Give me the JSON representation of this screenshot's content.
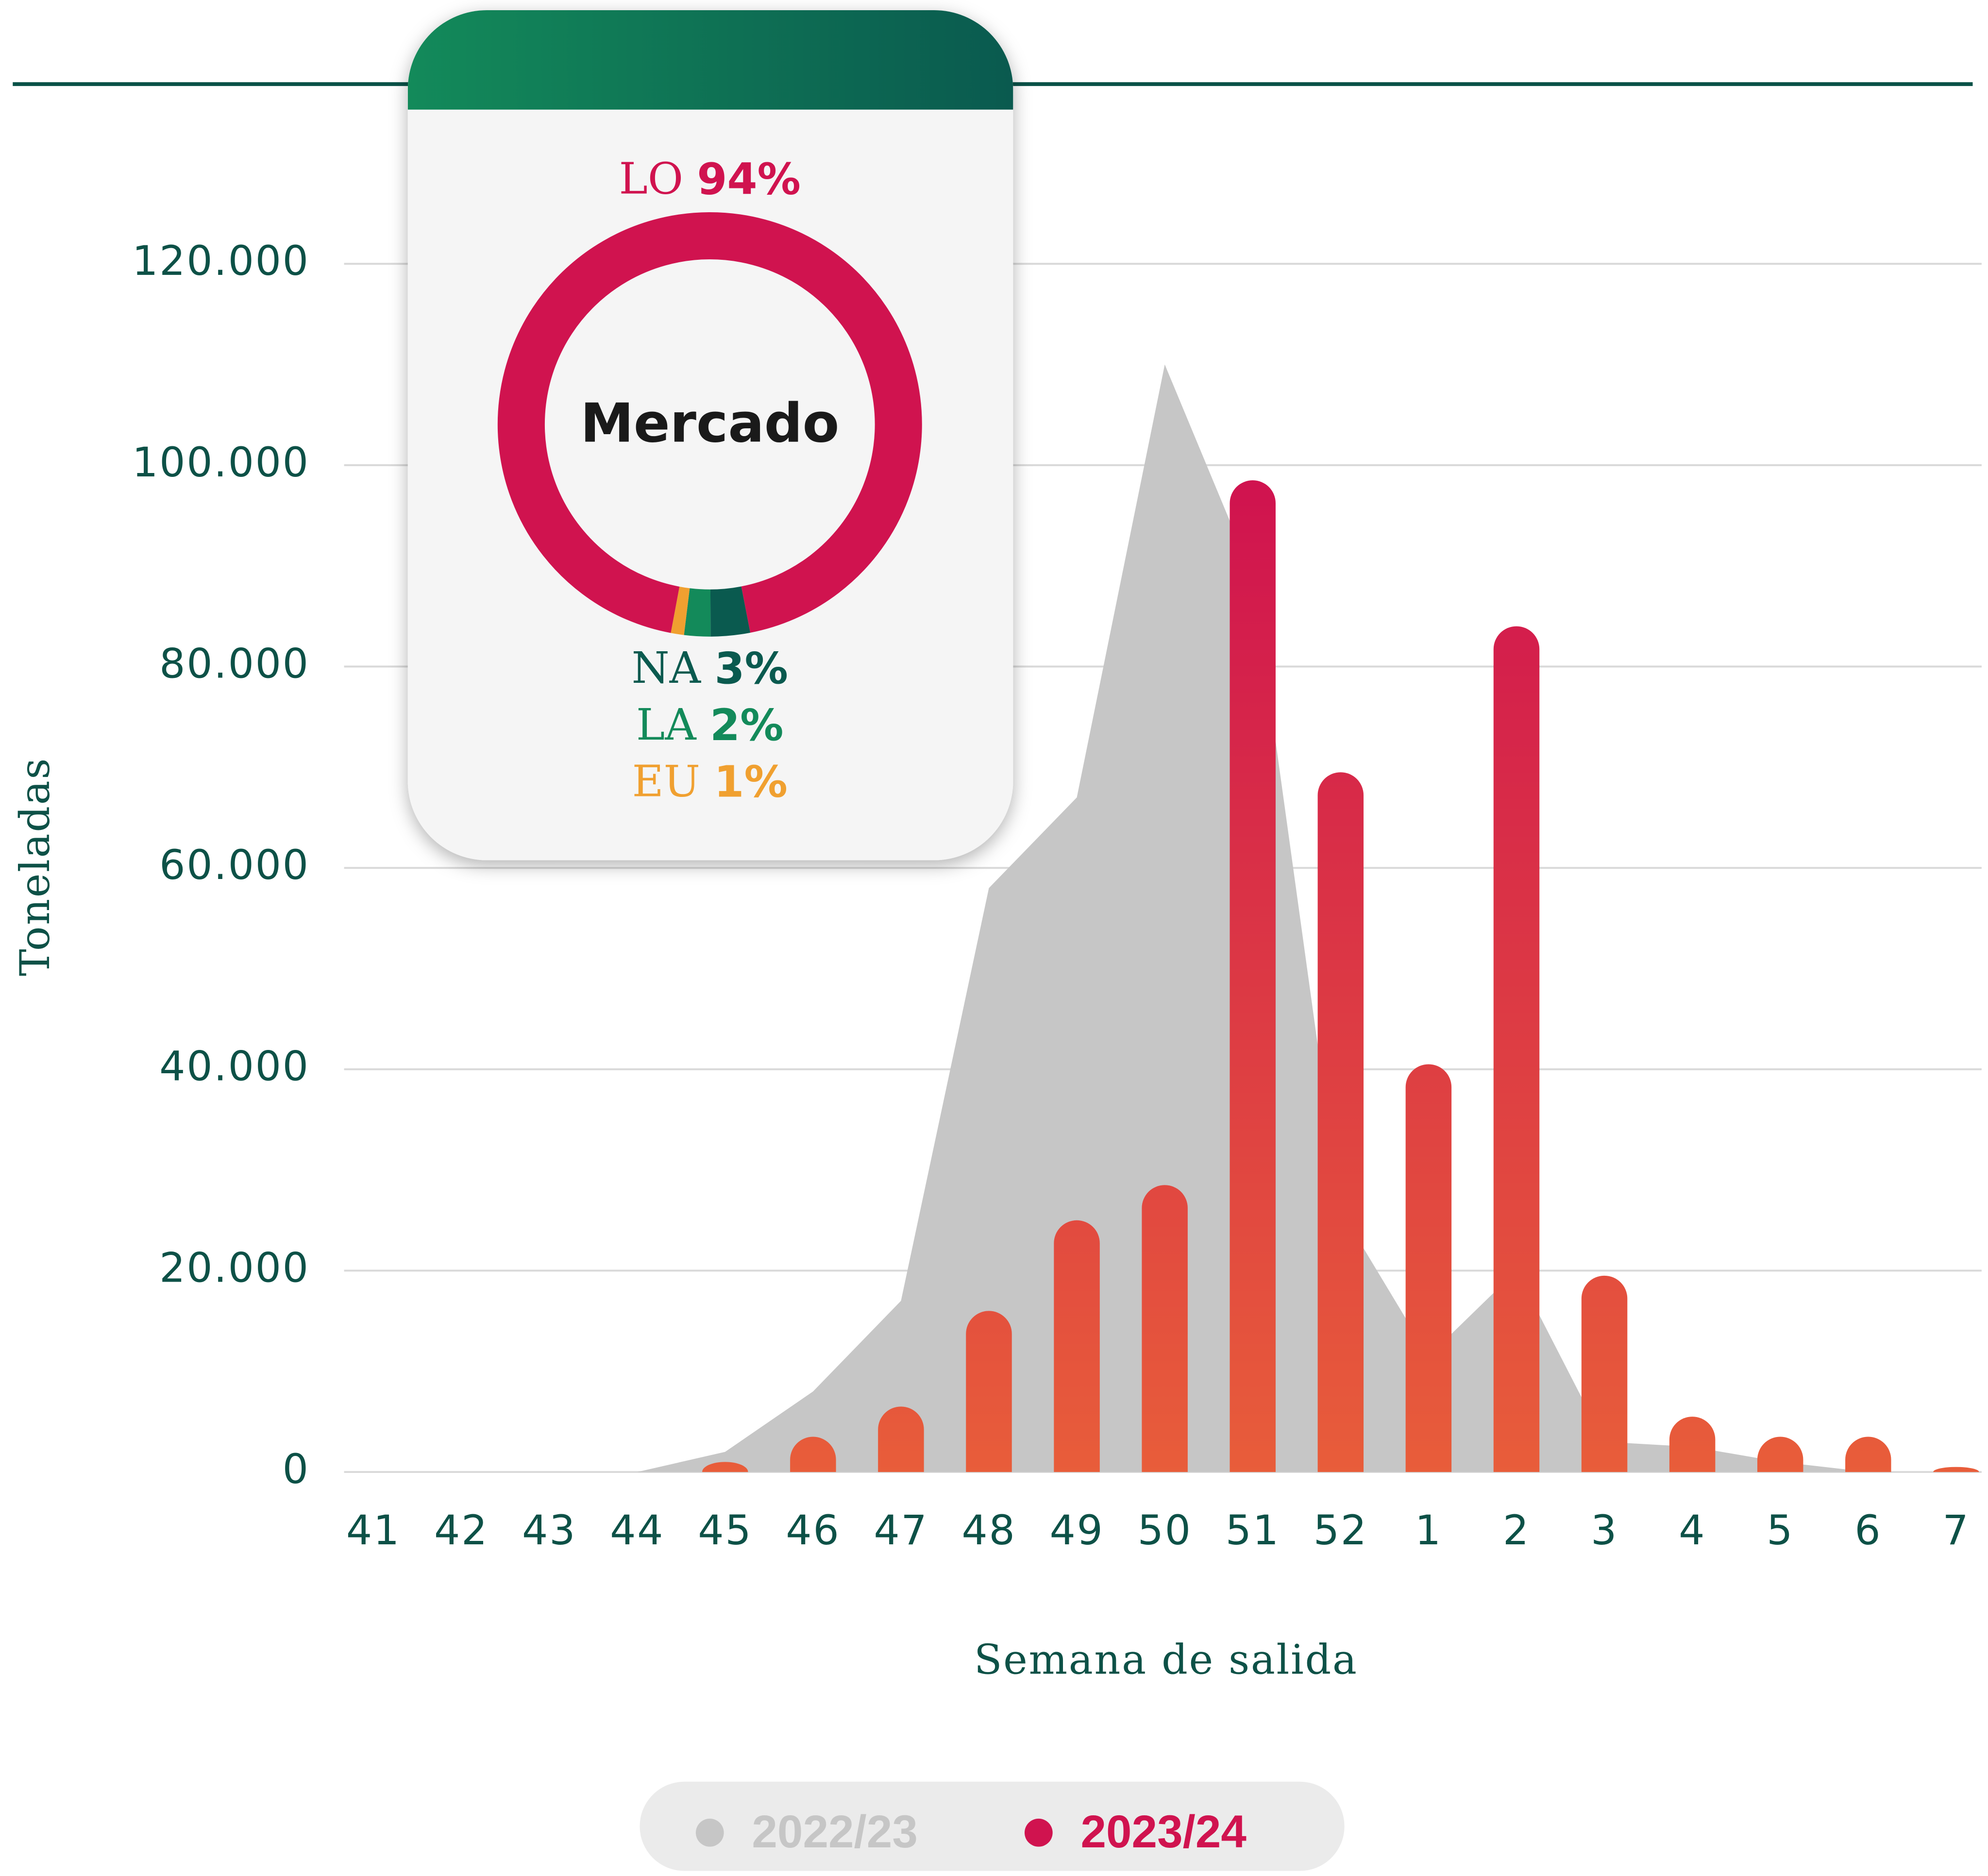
{
  "chart_data": [
    {
      "type": "bar",
      "xlabel": "Semana de salida",
      "ylabel": "Toneladas",
      "categories": [
        "41",
        "42",
        "43",
        "44",
        "45",
        "46",
        "47",
        "48",
        "49",
        "50",
        "51",
        "52",
        "1",
        "2",
        "3",
        "4",
        "5",
        "6",
        "7"
      ],
      "series": [
        {
          "name": "2022/23",
          "type": "area",
          "color": "#c6c6c6",
          "values": [
            0,
            0,
            0,
            0,
            2000,
            8000,
            17000,
            58000,
            67000,
            110000,
            89000,
            26000,
            11500,
            20000,
            3000,
            2500,
            1000,
            0,
            0
          ]
        },
        {
          "name": "2023/24",
          "type": "bar",
          "color": "#d0134f",
          "values": [
            0,
            0,
            0,
            0,
            1000,
            3500,
            6500,
            16000,
            25000,
            28500,
            98500,
            69500,
            40500,
            84000,
            19500,
            5500,
            3500,
            3500,
            500
          ]
        }
      ],
      "ylim": [
        0,
        120000
      ],
      "yticks": [
        0,
        {
          "value": 20000,
          "label": "20.000"
        },
        {
          "value": 40000,
          "label": "40.000"
        },
        {
          "value": 60000,
          "label": "60.000"
        },
        {
          "value": 80000,
          "label": "80.000"
        },
        {
          "value": 100000,
          "label": "100.000"
        },
        {
          "value": 120000,
          "label": "120.000"
        }
      ],
      "grid": true,
      "legend": "bottom"
    },
    {
      "type": "pie",
      "title": "Mercado",
      "categories": [
        "LO",
        "NA",
        "LA",
        "EU"
      ],
      "values": [
        94,
        3,
        2,
        1
      ],
      "value_labels": [
        "94%",
        "3%",
        "2%",
        "1%"
      ],
      "colors": [
        "#d0134f",
        "#0a5a4f",
        "#138a5a",
        "#f0a030"
      ]
    }
  ]
}
